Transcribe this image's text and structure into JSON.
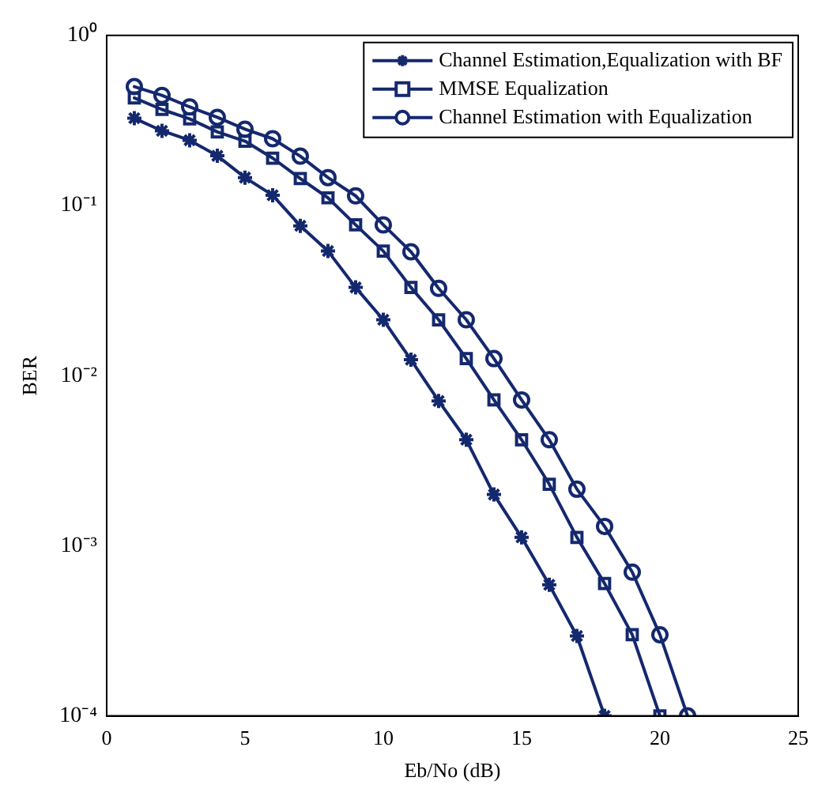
{
  "chart_data": {
    "type": "line",
    "xlabel": "Eb/No (dB)",
    "ylabel": "BER",
    "log": "y",
    "xlim": [
      0,
      25
    ],
    "xticks": [
      0,
      5,
      10,
      15,
      20,
      25
    ],
    "ylim": [
      0.0001,
      1
    ],
    "yticks": [
      {
        "value": 1,
        "label": "10⁰"
      },
      {
        "value": 0.1,
        "label": "10⁻¹"
      },
      {
        "value": 0.01,
        "label": "10⁻²"
      },
      {
        "value": 0.001,
        "label": "10⁻³"
      },
      {
        "value": 0.0001,
        "label": "10⁻⁴"
      }
    ],
    "grid": false,
    "legend": "top right",
    "line_style": "solid",
    "x": [
      1,
      2,
      3,
      4,
      5,
      6,
      7,
      8,
      9,
      10,
      11,
      12,
      13,
      14,
      15,
      16,
      17,
      18,
      19,
      20,
      21
    ],
    "series": [
      {
        "name": "Channel Estimation,Equalization with BF",
        "color": "#14286e",
        "marker": "cross",
        "values": [
          0.326,
          0.275,
          0.242,
          0.196,
          0.146,
          0.115,
          0.076,
          0.054,
          0.033,
          0.0213,
          0.0124,
          0.0071,
          0.0042,
          0.002,
          0.00112,
          0.00059,
          0.000295,
          0.0001,
          null,
          null,
          null
        ]
      },
      {
        "name": "MMSE Equalization",
        "color": "#14286e",
        "marker": "square",
        "values": [
          0.429,
          0.367,
          0.323,
          0.271,
          0.239,
          0.19,
          0.144,
          0.111,
          0.077,
          0.054,
          0.033,
          0.0213,
          0.0126,
          0.0072,
          0.0042,
          0.0023,
          0.00112,
          0.0006,
          0.0003,
          0.0001,
          null
        ]
      },
      {
        "name": "Channel Estimation with Equalization",
        "color": "#14286e",
        "marker": "circle",
        "values": [
          0.5,
          0.444,
          0.38,
          0.33,
          0.281,
          0.247,
          0.195,
          0.146,
          0.114,
          0.077,
          0.0535,
          0.0326,
          0.0213,
          0.0126,
          0.0072,
          0.0042,
          0.00215,
          0.0013,
          0.0007,
          0.0003,
          0.0001
        ]
      }
    ]
  }
}
